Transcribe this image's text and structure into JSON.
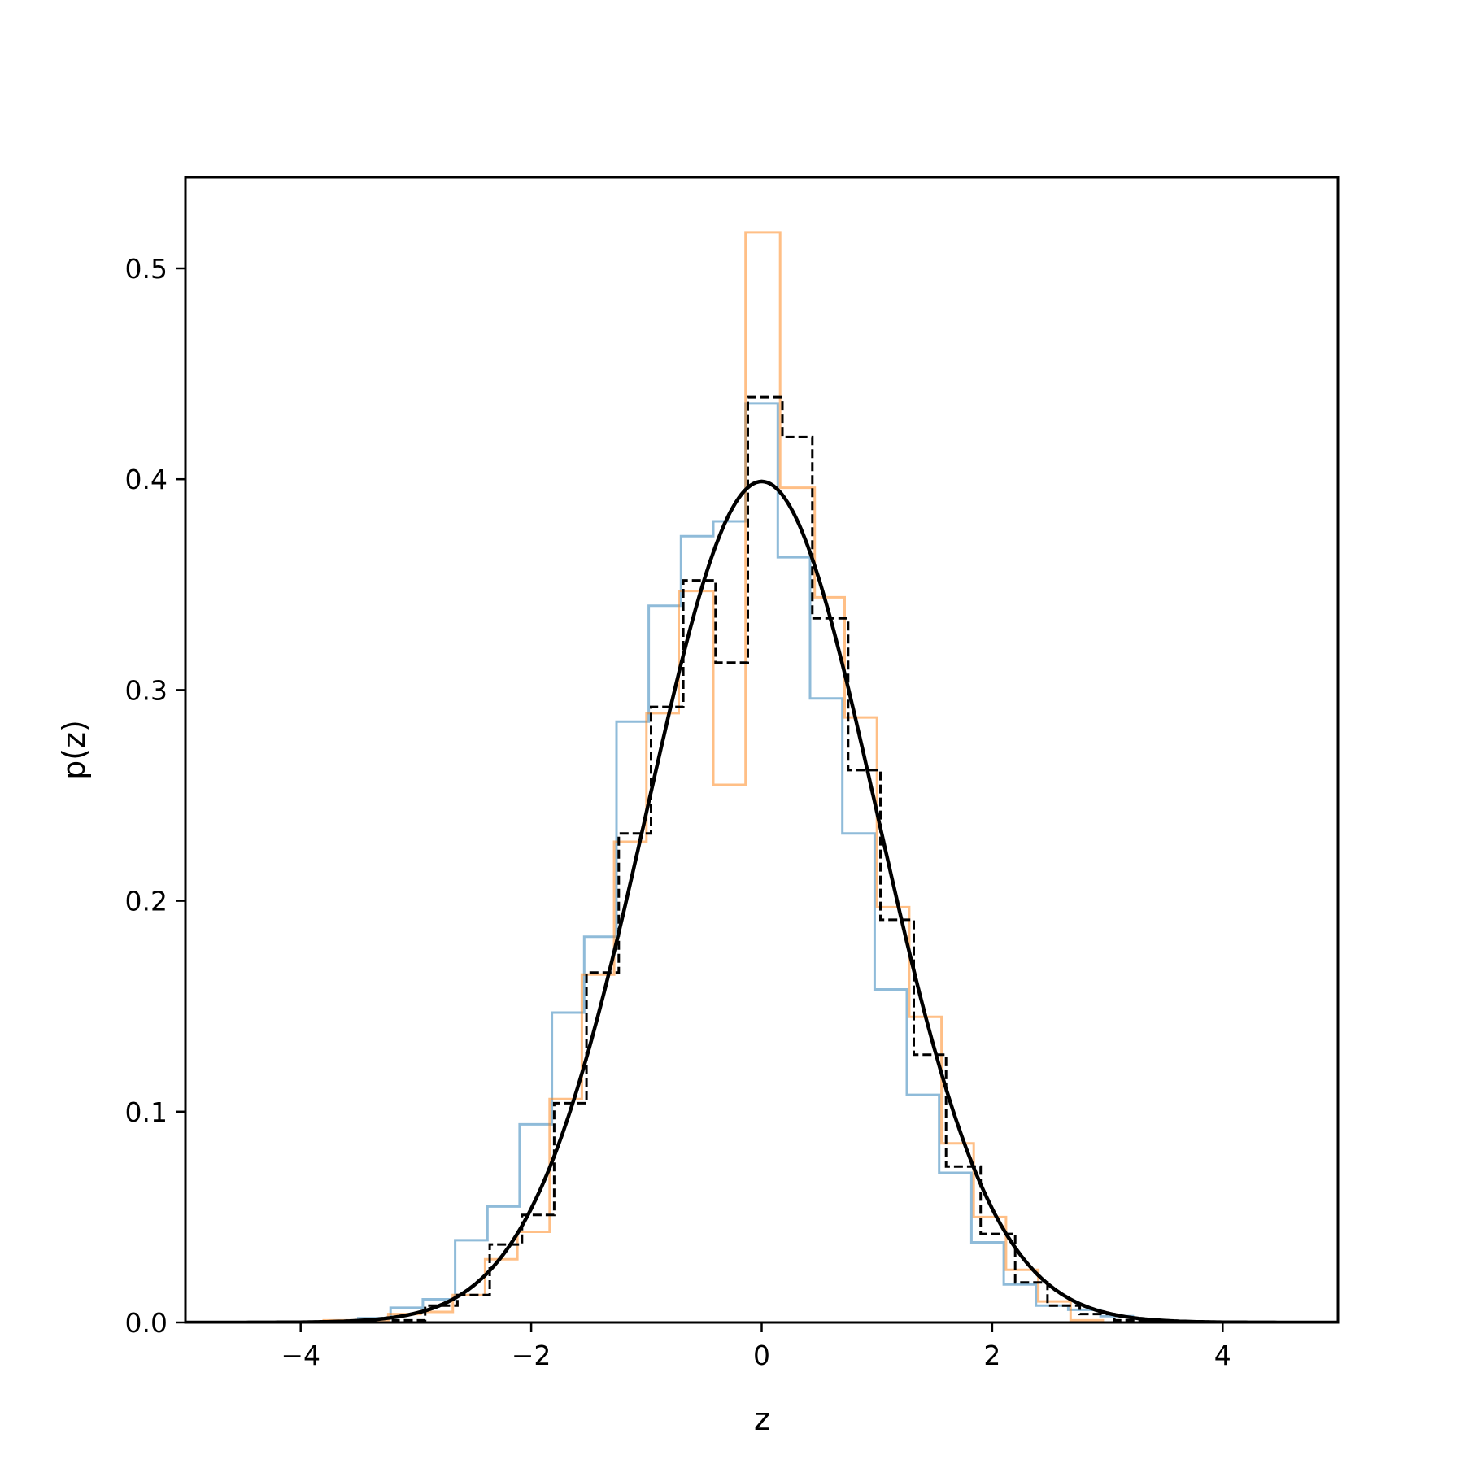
{
  "chart_data": {
    "type": "line",
    "title": "",
    "xlabel": "z",
    "ylabel": "p(z)",
    "xlim": [
      -5,
      5
    ],
    "ylim": [
      0,
      0.54
    ],
    "grid": false,
    "legend": "none",
    "xticks": [
      {
        "value": -4,
        "label": "−4"
      },
      {
        "value": -2,
        "label": "−2"
      },
      {
        "value": 0,
        "label": "0"
      },
      {
        "value": 2,
        "label": "2"
      },
      {
        "value": 4,
        "label": "4"
      }
    ],
    "yticks": [
      {
        "value": 0.0,
        "label": "0.0"
      },
      {
        "value": 0.1,
        "label": "0.1"
      },
      {
        "value": 0.2,
        "label": "0.2"
      },
      {
        "value": 0.3,
        "label": "0.3"
      },
      {
        "value": 0.4,
        "label": "0.4"
      },
      {
        "value": 0.5,
        "label": "0.5"
      }
    ],
    "series": [
      {
        "kind": "step-histogram",
        "style": "solid",
        "color": "#1f77b4",
        "opacity": 0.5,
        "edges": [
          -3.5,
          -3.22,
          -2.94,
          -2.66,
          -2.38,
          -2.1,
          -1.82,
          -1.54,
          -1.26,
          -0.98,
          -0.7,
          -0.42,
          -0.14,
          0.14,
          0.42,
          0.7,
          0.98,
          1.26,
          1.54,
          1.82,
          2.1,
          2.38,
          2.66,
          2.94,
          3.22
        ],
        "values": [
          0.002,
          0.007,
          0.011,
          0.039,
          0.055,
          0.094,
          0.147,
          0.183,
          0.285,
          0.34,
          0.373,
          0.38,
          0.436,
          0.363,
          0.296,
          0.232,
          0.158,
          0.108,
          0.071,
          0.038,
          0.018,
          0.008,
          0.006,
          0.003
        ]
      },
      {
        "kind": "step-histogram",
        "style": "solid",
        "color": "#ff7f0e",
        "opacity": 0.5,
        "edges": [
          -3.8,
          -3.52,
          -3.24,
          -2.96,
          -2.68,
          -2.4,
          -2.12,
          -1.84,
          -1.56,
          -1.28,
          -1.0,
          -0.72,
          -0.42,
          -0.14,
          0.16,
          0.46,
          0.72,
          1.0,
          1.28,
          1.56,
          1.84,
          2.12,
          2.4,
          2.68,
          2.96
        ],
        "values": [
          0.001,
          0.001,
          0.004,
          0.005,
          0.013,
          0.03,
          0.043,
          0.106,
          0.165,
          0.228,
          0.289,
          0.347,
          0.255,
          0.517,
          0.396,
          0.344,
          0.287,
          0.197,
          0.145,
          0.085,
          0.05,
          0.025,
          0.01,
          0.001
        ]
      },
      {
        "kind": "step-histogram",
        "style": "dashed",
        "color": "#000000",
        "opacity": 1,
        "edges": [
          -3.2,
          -2.92,
          -2.64,
          -2.36,
          -2.08,
          -1.8,
          -1.52,
          -1.24,
          -0.96,
          -0.68,
          -0.4,
          -0.12,
          0.18,
          0.44,
          0.75,
          1.03,
          1.32,
          1.6,
          1.9,
          2.2,
          2.48,
          2.76,
          3.06,
          3.36
        ],
        "values": [
          0.001,
          0.008,
          0.013,
          0.037,
          0.051,
          0.104,
          0.166,
          0.232,
          0.292,
          0.352,
          0.313,
          0.439,
          0.42,
          0.334,
          0.262,
          0.191,
          0.127,
          0.074,
          0.042,
          0.019,
          0.008,
          0.004,
          0.001
        ]
      },
      {
        "kind": "curve",
        "style": "solid",
        "color": "#000000",
        "function": "standard normal pdf",
        "mean": 0,
        "std": 1,
        "x_range": [
          -5,
          5
        ]
      }
    ]
  }
}
